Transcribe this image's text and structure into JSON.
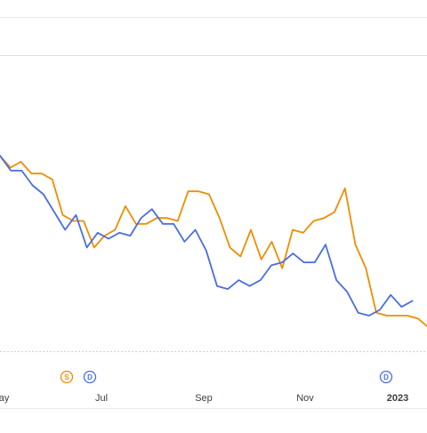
{
  "chart_data": {
    "type": "line",
    "x_ticks": [
      {
        "label": "May",
        "bold": false
      },
      {
        "label": "Jul",
        "bold": false
      },
      {
        "label": "Sep",
        "bold": false
      },
      {
        "label": "Nov",
        "bold": false
      },
      {
        "label": "2023",
        "bold": true
      }
    ],
    "ylim": [
      0,
      100
    ],
    "grid": true,
    "legend": "none",
    "series": [
      {
        "color": "#f08c00",
        "values": [
          66,
          62,
          64,
          60,
          60,
          58,
          46,
          44,
          44,
          35,
          39,
          41,
          49,
          43,
          43,
          45,
          45,
          44,
          54,
          54,
          53,
          45,
          35,
          32,
          41,
          31,
          37,
          28,
          41,
          40,
          44,
          45,
          47,
          55,
          36,
          28,
          13,
          12,
          12,
          12,
          11,
          8
        ]
      },
      {
        "color": "#4a6ee0",
        "values": [
          66,
          61,
          61,
          56,
          53,
          47,
          41,
          46,
          35,
          40,
          38,
          40,
          39,
          45,
          48,
          43,
          43,
          37,
          41,
          34,
          22,
          21,
          24,
          22,
          24,
          29,
          30,
          33,
          30,
          30,
          36,
          24,
          20,
          13,
          12,
          14,
          19,
          15,
          17
        ]
      }
    ],
    "event_markers": [
      {
        "letter": "S",
        "color": "#f08c00"
      },
      {
        "letter": "D",
        "color": "#4a6ee0"
      },
      {
        "letter": "D",
        "color": "#4a6ee0"
      }
    ]
  }
}
